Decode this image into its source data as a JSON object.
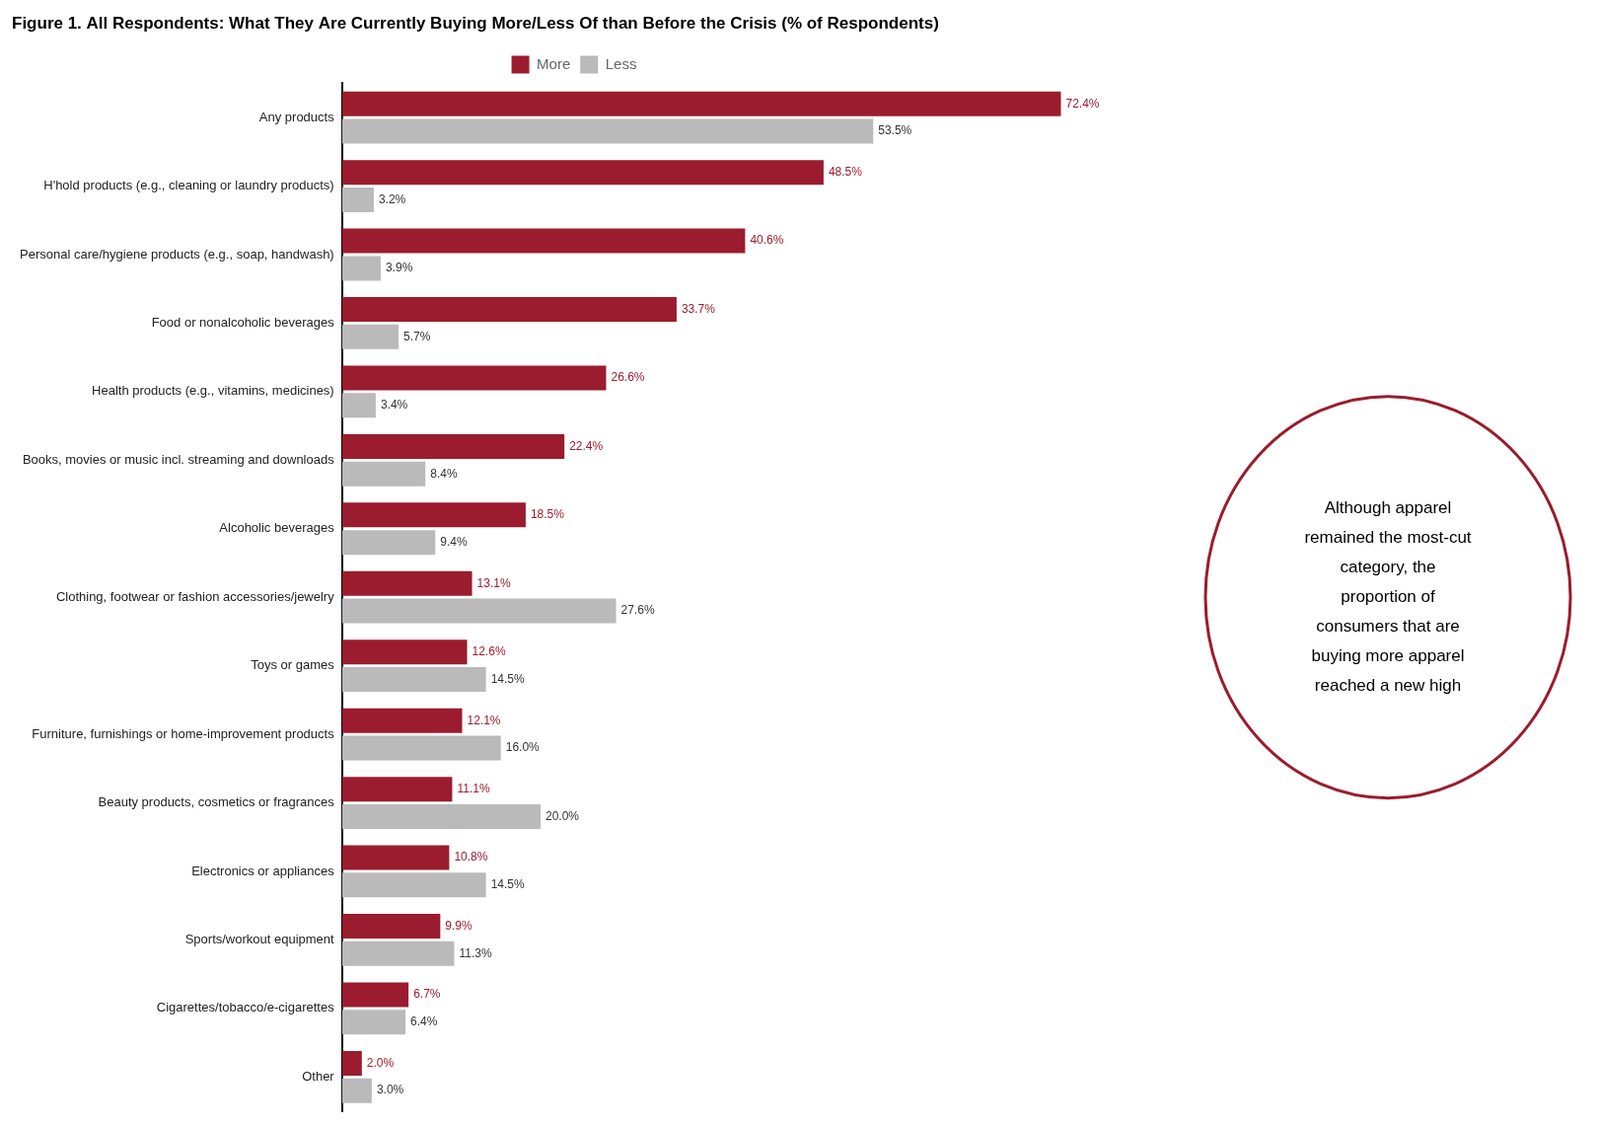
{
  "chart_data": {
    "type": "bar",
    "orientation": "horizontal",
    "title": "Figure 1. All Respondents: What They Are Currently Buying More/Less Of than Before the Crisis (% of Respondents)",
    "categories": [
      "Any products",
      "H'hold products (e.g., cleaning or laundry products)",
      "Personal care/hygiene products (e.g., soap, handwash)",
      "Food or nonalcoholic beverages",
      "Health products (e.g., vitamins, medicines)",
      "Books, movies or music incl. streaming and downloads",
      "Alcoholic beverages",
      "Clothing, footwear or fashion accessories/jewelry",
      "Toys or games",
      "Furniture, furnishings or home-improvement products",
      "Beauty products, cosmetics or fragrances",
      "Electronics or appliances",
      "Sports/workout equipment",
      "Cigarettes/tobacco/e-cigarettes",
      "Other"
    ],
    "series": [
      {
        "name": "More",
        "color": "#9B1C2E",
        "values": [
          72.4,
          48.5,
          40.6,
          33.7,
          26.6,
          22.4,
          18.5,
          13.1,
          12.6,
          12.1,
          11.1,
          10.8,
          9.9,
          6.7,
          2.0
        ],
        "value_labels": [
          "72.4%",
          "48.5%",
          "40.6%",
          "33.7%",
          "26.6%",
          "22.4%",
          "18.5%",
          "13.1%",
          "12.6%",
          "12.1%",
          "11.1%",
          "10.8%",
          "9.9%",
          "6.7%",
          "2.0%"
        ]
      },
      {
        "name": "Less",
        "color": "#BABABA",
        "values": [
          53.5,
          3.2,
          3.9,
          5.7,
          3.4,
          8.4,
          9.4,
          27.6,
          14.5,
          16.0,
          20.0,
          14.5,
          11.3,
          6.4,
          3.0
        ],
        "value_labels": [
          "53.5%",
          "3.2%",
          "3.9%",
          "5.7%",
          "3.4%",
          "8.4%",
          "9.4%",
          "27.6%",
          "14.5%",
          "16.0%",
          "20.0%",
          "14.5%",
          "11.3%",
          "6.4%",
          "3.0%"
        ]
      }
    ],
    "xlim": [
      0,
      80
    ],
    "tick_labels": "y",
    "grid": false,
    "legend": "top",
    "data_labels": true,
    "annotation": "Although apparel\nremained the most-cut\ncategory, the\nproportion of\nconsumers that are\nbuying more apparel\nreached a new high"
  }
}
